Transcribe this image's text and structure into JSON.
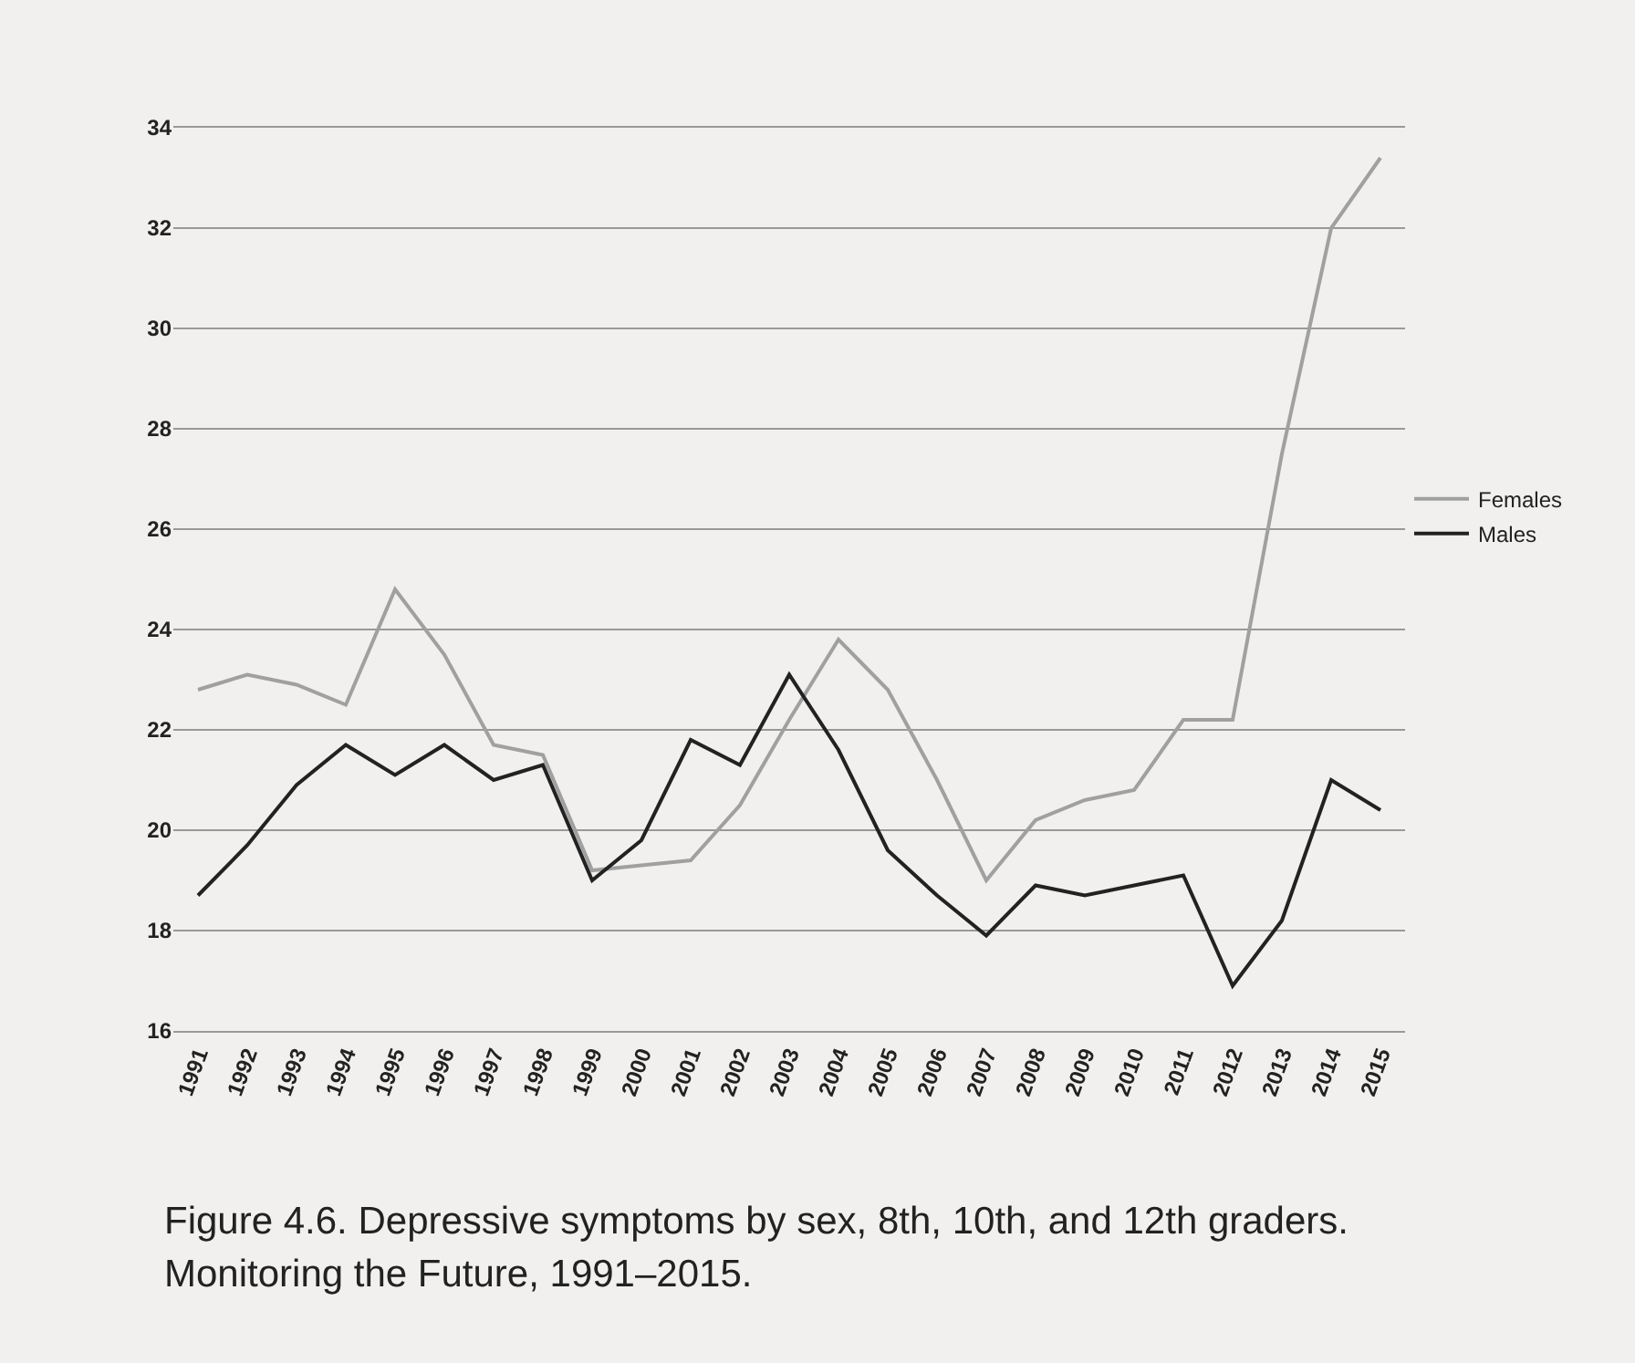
{
  "chart_data": {
    "type": "line",
    "title": "Figure 4.6. Depressive symptoms by sex, 8th, 10th, and 12th graders. Monitoring the Future, 1991–2015.",
    "categories": [
      "1991",
      "1992",
      "1993",
      "1994",
      "1995",
      "1996",
      "1997",
      "1998",
      "1999",
      "2000",
      "2001",
      "2002",
      "2003",
      "2004",
      "2005",
      "2006",
      "2007",
      "2008",
      "2009",
      "2010",
      "2011",
      "2012",
      "2013",
      "2014",
      "2015"
    ],
    "series": [
      {
        "name": "Females",
        "color": "#a0a0a0",
        "values": [
          22.8,
          23.1,
          22.9,
          22.5,
          24.8,
          23.5,
          21.7,
          21.5,
          19.2,
          19.3,
          19.4,
          20.5,
          22.2,
          23.8,
          22.8,
          21.0,
          19.0,
          20.2,
          20.6,
          20.8,
          22.2,
          22.2,
          27.5,
          32.0,
          33.4
        ]
      },
      {
        "name": "Males",
        "color": "#222222",
        "values": [
          18.7,
          19.7,
          20.9,
          21.7,
          21.1,
          21.7,
          21.0,
          21.3,
          19.0,
          19.8,
          21.8,
          21.3,
          23.1,
          21.6,
          19.6,
          18.7,
          17.9,
          18.9,
          18.7,
          18.9,
          19.1,
          16.9,
          18.2,
          21.0,
          20.4
        ]
      }
    ],
    "ylim": [
      16,
      34
    ],
    "yticks": [
      16,
      18,
      20,
      22,
      24,
      26,
      28,
      30,
      32,
      34
    ],
    "grid": "y",
    "legend": "right",
    "marker": "none",
    "line_style": "solid"
  }
}
